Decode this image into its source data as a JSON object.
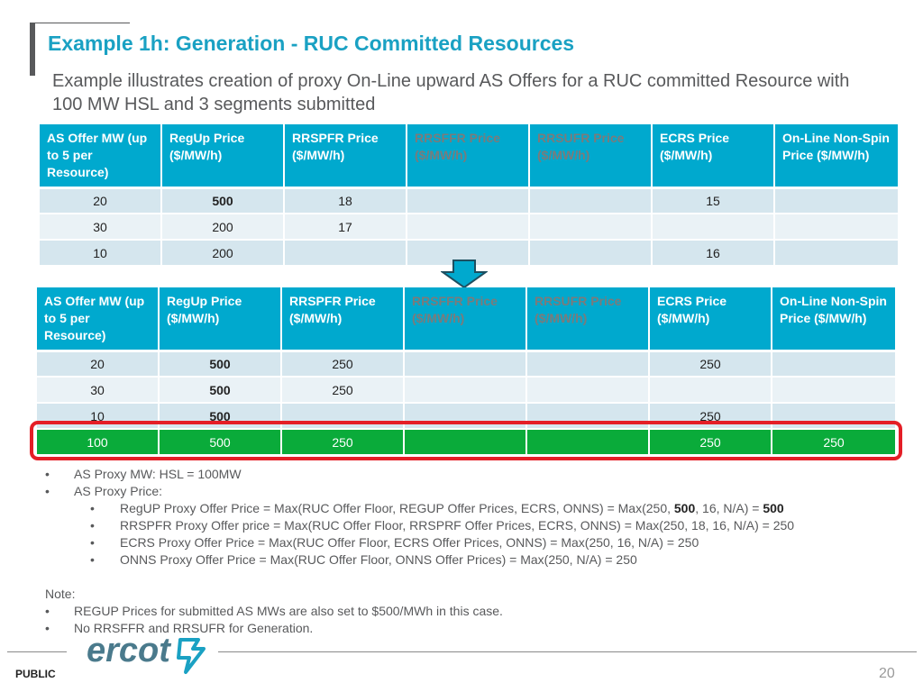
{
  "title": "Example 1h: Generation - RUC Committed Resources",
  "subtitle": "Example illustrates creation of proxy On-Line upward AS Offers for a RUC committed Resource with 100 MW HSL and 3 segments submitted",
  "columns": [
    "AS Offer MW (up to 5 per Resource)",
    "RegUp Price ($/MW/h)",
    "RRSPFR Price ($/MW/h)",
    "RRSFFR Price ($/MW/h)",
    "RRSUFR Price ($/MW/h)",
    "ECRS Price ($/MW/h)",
    "On-Line Non-Spin Price ($/MW/h)"
  ],
  "table1": {
    "rows": [
      [
        "20",
        "500",
        "18",
        "",
        "",
        "15",
        ""
      ],
      [
        "30",
        "200",
        "17",
        "",
        "",
        "",
        ""
      ],
      [
        "10",
        "200",
        "",
        "",
        "",
        "16",
        ""
      ]
    ]
  },
  "table2": {
    "rows": [
      [
        "20",
        "500",
        "250",
        "",
        "",
        "250",
        ""
      ],
      [
        "30",
        "500",
        "250",
        "",
        "",
        "",
        ""
      ],
      [
        "10",
        "500",
        "",
        "",
        "",
        "250",
        ""
      ]
    ],
    "proxy_row": [
      "100",
      "500",
      "250",
      "",
      "",
      "250",
      "250"
    ]
  },
  "bullets": {
    "proxy_mw": "AS Proxy MW: HSL = 100MW",
    "proxy_price": "AS Proxy Price:",
    "regup_pre": "RegUP Proxy Offer Price = Max(RUC Offer Floor, REGUP Offer Prices, ECRS, ONNS) = Max(250, ",
    "regup_bold1": "500",
    "regup_mid": ", 16, N/A) = ",
    "regup_bold2": "500",
    "rrspfr": "RRSPFR Proxy Offer price = Max(RUC Offer Floor, RRSPRF Offer Prices, ECRS, ONNS) = Max(250, 18, 16, N/A) = 250",
    "ecrs": "ECRS Proxy Offer Price = Max(RUC Offer Floor, ECRS Offer Prices, ONNS) = Max(250, 16,  N/A) = 250",
    "onns": "ONNS Proxy Offer Price = Max(RUC Offer Floor, ONNS Offer Prices) = Max(250, N/A) = 250"
  },
  "note": {
    "heading": "Note:",
    "items": [
      "REGUP Prices for submitted AS MWs are also set to $500/MWh in this case.",
      "No RRSFFR and RRSUFR for Generation."
    ]
  },
  "footer": {
    "logo_text": "ercot",
    "public_label": "PUBLIC",
    "page_number": "20"
  },
  "colors": {
    "title": "#1aa1c3",
    "header": "#00a9ce",
    "proxy_row": "#0aab3a",
    "highlight": "#e41e26"
  }
}
